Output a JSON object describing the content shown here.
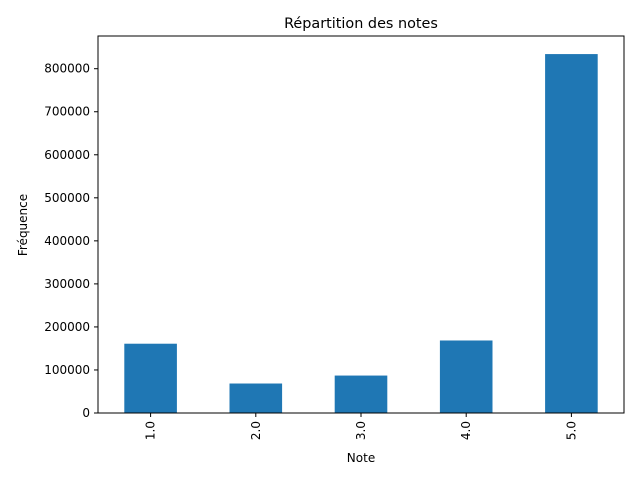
{
  "chart_data": {
    "type": "bar",
    "title": "Répartition des notes",
    "xlabel": "Note",
    "ylabel": "Fréquence",
    "categories": [
      "1.0",
      "2.0",
      "3.0",
      "4.0",
      "5.0"
    ],
    "values": [
      161000,
      68500,
      87000,
      168500,
      834000
    ],
    "ylim": [
      0,
      876000
    ],
    "yticks": [
      0,
      100000,
      200000,
      300000,
      400000,
      500000,
      600000,
      700000,
      800000
    ],
    "ytick_labels": [
      "0",
      "100000",
      "200000",
      "300000",
      "400000",
      "500000",
      "600000",
      "700000",
      "800000"
    ],
    "grid": false,
    "legend": "none",
    "colors": {
      "bar": "#1f77b4",
      "axis": "#000000",
      "background": "#ffffff"
    }
  }
}
